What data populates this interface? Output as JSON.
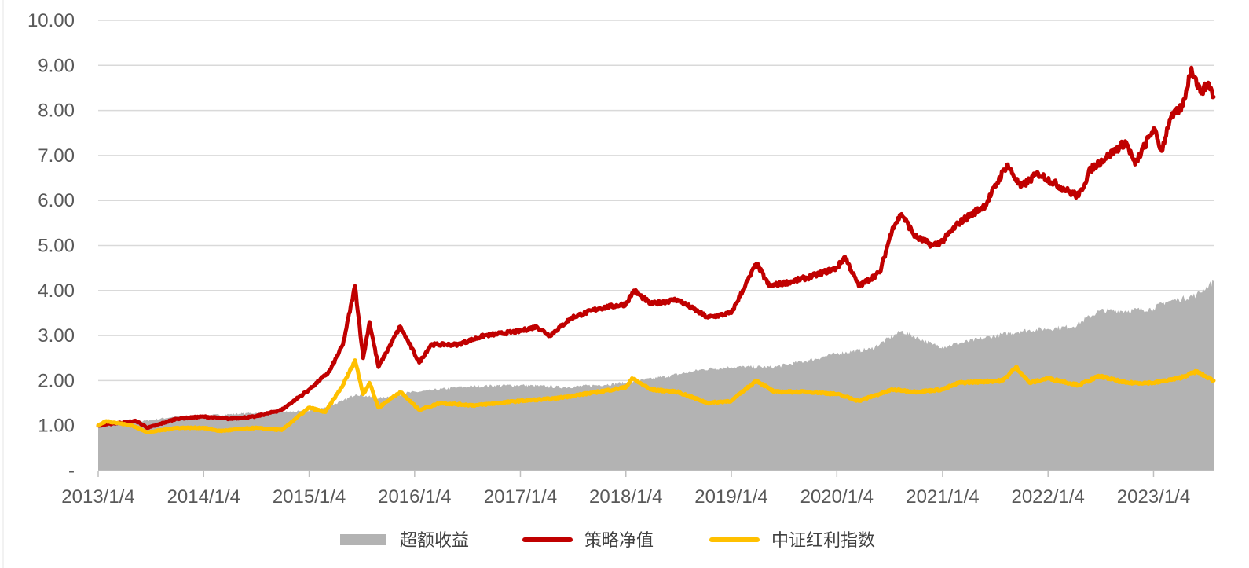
{
  "chart_data": {
    "type": "line",
    "title": "",
    "xlabel": "",
    "ylabel": "",
    "x_tick_labels": [
      "2013/1/4",
      "2014/1/4",
      "2015/1/4",
      "2016/1/4",
      "2017/1/4",
      "2018/1/4",
      "2019/1/4",
      "2020/1/4",
      "2021/1/4",
      "2022/1/4",
      "2023/1/4"
    ],
    "y_tick_labels": [
      "-",
      "1.00",
      "2.00",
      "3.00",
      "4.00",
      "5.00",
      "6.00",
      "7.00",
      "8.00",
      "9.00",
      "10.00"
    ],
    "y_ticks": [
      0,
      1,
      2,
      3,
      4,
      5,
      6,
      7,
      8,
      9,
      10
    ],
    "ylim": [
      0,
      10
    ],
    "xlim": [
      "2013-01-04",
      "2023-07-31"
    ],
    "grid": "horizontal",
    "legend_position": "bottom",
    "series": [
      {
        "name": "超额收益",
        "kind": "area",
        "color": "#b3b3b3",
        "points": [
          [
            "2013-01-04",
            1.0
          ],
          [
            "2013-04-01",
            1.03
          ],
          [
            "2013-07-01",
            1.12
          ],
          [
            "2013-10-01",
            1.2
          ],
          [
            "2014-01-04",
            1.22
          ],
          [
            "2014-04-01",
            1.25
          ],
          [
            "2014-07-01",
            1.28
          ],
          [
            "2014-10-01",
            1.3
          ],
          [
            "2015-01-04",
            1.32
          ],
          [
            "2015-03-01",
            1.4
          ],
          [
            "2015-05-01",
            1.55
          ],
          [
            "2015-06-15",
            1.7
          ],
          [
            "2015-09-01",
            1.6
          ],
          [
            "2015-12-01",
            1.72
          ],
          [
            "2016-03-01",
            1.78
          ],
          [
            "2016-06-01",
            1.85
          ],
          [
            "2016-09-01",
            1.88
          ],
          [
            "2017-01-04",
            1.9
          ],
          [
            "2017-06-01",
            1.85
          ],
          [
            "2017-10-01",
            1.9
          ],
          [
            "2018-01-04",
            1.95
          ],
          [
            "2018-06-01",
            2.1
          ],
          [
            "2018-10-01",
            2.25
          ],
          [
            "2019-01-04",
            2.3
          ],
          [
            "2019-06-01",
            2.3
          ],
          [
            "2019-10-01",
            2.45
          ],
          [
            "2020-01-04",
            2.6
          ],
          [
            "2020-05-01",
            2.7
          ],
          [
            "2020-08-15",
            3.1
          ],
          [
            "2020-12-01",
            2.8
          ],
          [
            "2021-01-04",
            2.75
          ],
          [
            "2021-06-01",
            2.95
          ],
          [
            "2021-10-01",
            3.1
          ],
          [
            "2022-01-04",
            3.15
          ],
          [
            "2022-04-01",
            3.2
          ],
          [
            "2022-07-01",
            3.55
          ],
          [
            "2022-10-01",
            3.55
          ],
          [
            "2023-01-04",
            3.6
          ],
          [
            "2023-02-15",
            3.75
          ],
          [
            "2023-04-01",
            3.8
          ],
          [
            "2023-06-01",
            3.9
          ],
          [
            "2023-07-31",
            4.2
          ]
        ]
      },
      {
        "name": "策略净值",
        "kind": "line",
        "color": "#c00000",
        "points": [
          [
            "2013-01-04",
            1.0
          ],
          [
            "2013-03-01",
            1.05
          ],
          [
            "2013-05-15",
            1.1
          ],
          [
            "2013-06-25",
            0.95
          ],
          [
            "2013-10-01",
            1.15
          ],
          [
            "2014-01-04",
            1.2
          ],
          [
            "2014-04-01",
            1.15
          ],
          [
            "2014-07-01",
            1.2
          ],
          [
            "2014-10-01",
            1.35
          ],
          [
            "2015-01-04",
            1.8
          ],
          [
            "2015-03-15",
            2.2
          ],
          [
            "2015-05-01",
            2.8
          ],
          [
            "2015-06-12",
            4.1
          ],
          [
            "2015-07-10",
            2.5
          ],
          [
            "2015-08-01",
            3.3
          ],
          [
            "2015-09-01",
            2.3
          ],
          [
            "2015-11-15",
            3.2
          ],
          [
            "2016-01-20",
            2.4
          ],
          [
            "2016-03-01",
            2.8
          ],
          [
            "2016-06-01",
            2.8
          ],
          [
            "2016-09-01",
            3.0
          ],
          [
            "2017-01-04",
            3.1
          ],
          [
            "2017-03-01",
            3.2
          ],
          [
            "2017-04-15",
            3.0
          ],
          [
            "2017-07-01",
            3.4
          ],
          [
            "2017-10-01",
            3.6
          ],
          [
            "2018-01-04",
            3.7
          ],
          [
            "2018-02-01",
            4.0
          ],
          [
            "2018-04-01",
            3.7
          ],
          [
            "2018-07-01",
            3.8
          ],
          [
            "2018-10-15",
            3.4
          ],
          [
            "2019-01-04",
            3.5
          ],
          [
            "2019-04-01",
            4.6
          ],
          [
            "2019-05-15",
            4.1
          ],
          [
            "2019-08-01",
            4.2
          ],
          [
            "2019-10-01",
            4.3
          ],
          [
            "2020-01-04",
            4.5
          ],
          [
            "2020-02-01",
            4.75
          ],
          [
            "2020-03-20",
            4.1
          ],
          [
            "2020-06-01",
            4.4
          ],
          [
            "2020-07-15",
            5.4
          ],
          [
            "2020-08-15",
            5.7
          ],
          [
            "2020-10-01",
            5.2
          ],
          [
            "2020-12-01",
            5.0
          ],
          [
            "2021-01-04",
            5.1
          ],
          [
            "2021-03-01",
            5.5
          ],
          [
            "2021-06-01",
            5.9
          ],
          [
            "2021-08-15",
            6.8
          ],
          [
            "2021-10-01",
            6.3
          ],
          [
            "2021-12-01",
            6.6
          ],
          [
            "2022-03-15",
            6.2
          ],
          [
            "2022-04-20",
            6.1
          ],
          [
            "2022-06-01",
            6.7
          ],
          [
            "2022-08-01",
            7.0
          ],
          [
            "2022-10-01",
            7.3
          ],
          [
            "2022-11-01",
            6.8
          ],
          [
            "2023-01-04",
            7.6
          ],
          [
            "2023-02-01",
            7.1
          ],
          [
            "2023-03-01",
            7.8
          ],
          [
            "2023-04-15",
            8.1
          ],
          [
            "2023-05-15",
            8.95
          ],
          [
            "2023-06-15",
            8.4
          ],
          [
            "2023-07-15",
            8.6
          ],
          [
            "2023-07-31",
            8.3
          ]
        ]
      },
      {
        "name": "中证红利指数",
        "kind": "line",
        "color": "#ffc000",
        "points": [
          [
            "2013-01-04",
            1.0
          ],
          [
            "2013-02-01",
            1.1
          ],
          [
            "2013-05-01",
            1.0
          ],
          [
            "2013-06-25",
            0.85
          ],
          [
            "2013-10-01",
            0.95
          ],
          [
            "2014-01-04",
            0.95
          ],
          [
            "2014-03-01",
            0.88
          ],
          [
            "2014-07-01",
            0.95
          ],
          [
            "2014-10-01",
            0.9
          ],
          [
            "2015-01-04",
            1.4
          ],
          [
            "2015-03-01",
            1.3
          ],
          [
            "2015-05-01",
            1.9
          ],
          [
            "2015-06-12",
            2.45
          ],
          [
            "2015-07-10",
            1.7
          ],
          [
            "2015-08-01",
            1.95
          ],
          [
            "2015-09-01",
            1.4
          ],
          [
            "2015-11-15",
            1.75
          ],
          [
            "2016-01-20",
            1.35
          ],
          [
            "2016-04-01",
            1.5
          ],
          [
            "2016-08-01",
            1.45
          ],
          [
            "2017-01-04",
            1.55
          ],
          [
            "2017-05-01",
            1.6
          ],
          [
            "2017-10-01",
            1.75
          ],
          [
            "2018-01-04",
            1.85
          ],
          [
            "2018-01-25",
            2.05
          ],
          [
            "2018-04-01",
            1.8
          ],
          [
            "2018-07-01",
            1.75
          ],
          [
            "2018-10-15",
            1.5
          ],
          [
            "2019-01-04",
            1.55
          ],
          [
            "2019-04-01",
            2.0
          ],
          [
            "2019-06-01",
            1.75
          ],
          [
            "2019-10-01",
            1.75
          ],
          [
            "2020-01-04",
            1.7
          ],
          [
            "2020-03-20",
            1.55
          ],
          [
            "2020-07-15",
            1.8
          ],
          [
            "2020-10-01",
            1.75
          ],
          [
            "2021-01-04",
            1.8
          ],
          [
            "2021-03-01",
            1.95
          ],
          [
            "2021-08-01",
            2.0
          ],
          [
            "2021-09-15",
            2.3
          ],
          [
            "2021-11-01",
            1.95
          ],
          [
            "2022-01-04",
            2.05
          ],
          [
            "2022-04-20",
            1.9
          ],
          [
            "2022-07-01",
            2.1
          ],
          [
            "2022-10-01",
            1.95
          ],
          [
            "2023-01-04",
            1.95
          ],
          [
            "2023-04-01",
            2.05
          ],
          [
            "2023-06-01",
            2.2
          ],
          [
            "2023-07-31",
            2.0
          ]
        ]
      }
    ]
  }
}
